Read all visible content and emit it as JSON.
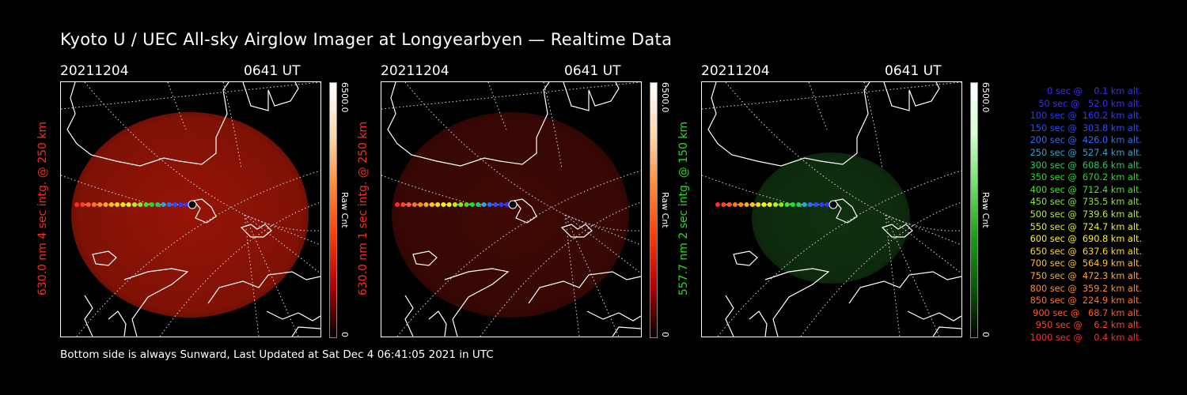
{
  "title": "Kyoto U / UEC All-sky Airglow Imager at Longyearbyen — Realtime Data",
  "panels": [
    {
      "date": "20211204",
      "time": "0641 UT",
      "ylabel": "630.0 nm 4 sec intg. @ 250 km",
      "label_color": "#ff2a1a",
      "cbar_max": "6500.0",
      "cbar_min": "0",
      "cbar_unit": "Raw Cnt",
      "cbar_gradient": [
        "#ffffff",
        "#ffd9b0",
        "#ff8c3a",
        "#ff3a0a",
        "#b00000",
        "#000000"
      ],
      "blob_color": "#c01a08",
      "blob_opacity": 0.78
    },
    {
      "date": "20211204",
      "time": "0641 UT",
      "ylabel": "630.0 nm 1 sec intg. @ 250 km",
      "label_color": "#ff2a1a",
      "cbar_max": "6500.0",
      "cbar_min": "0",
      "cbar_unit": "Raw Cnt",
      "cbar_gradient": [
        "#ffffff",
        "#ffd9b0",
        "#ff8c3a",
        "#ff3a0a",
        "#b00000",
        "#000000"
      ],
      "blob_color": "#5a0c06",
      "blob_opacity": 0.7
    },
    {
      "date": "20211204",
      "time": "0641 UT",
      "ylabel": "557.7 nm 2 sec intg. @ 150 km",
      "label_color": "#22dd22",
      "cbar_max": "6500.0",
      "cbar_min": "0",
      "cbar_unit": "Raw Cnt",
      "cbar_gradient": [
        "#ffffff",
        "#d4ffd0",
        "#6fe06a",
        "#1aa01a",
        "#0a5a0a",
        "#000000"
      ],
      "blob_color": "#123a12",
      "blob_opacity": 0.85
    }
  ],
  "legend": [
    {
      "text": "   0 sec @    0.1 km alt.",
      "color": "#3a2cff"
    },
    {
      "text": "  50 sec @   52.0 km alt.",
      "color": "#3a2cff"
    },
    {
      "text": " 100 sec @  160.2 km alt.",
      "color": "#2a3cff"
    },
    {
      "text": " 150 sec @  303.8 km alt.",
      "color": "#2a4cff"
    },
    {
      "text": " 200 sec @  426.0 km alt.",
      "color": "#2a6cff"
    },
    {
      "text": " 250 sec @  527.4 km alt.",
      "color": "#28a6d8"
    },
    {
      "text": " 300 sec @  608.6 km alt.",
      "color": "#22cc66"
    },
    {
      "text": " 350 sec @  670.2 km alt.",
      "color": "#22dd22"
    },
    {
      "text": " 400 sec @  712.4 km alt.",
      "color": "#44e022"
    },
    {
      "text": " 450 sec @  735.5 km alt.",
      "color": "#88e822"
    },
    {
      "text": " 500 sec @  739.6 km alt.",
      "color": "#b8ee22"
    },
    {
      "text": " 550 sec @  724.7 km alt.",
      "color": "#e6f022"
    },
    {
      "text": " 600 sec @  690.8 km alt.",
      "color": "#fff022"
    },
    {
      "text": " 650 sec @  637.6 km alt.",
      "color": "#ffd422"
    },
    {
      "text": " 700 sec @  564.9 km alt.",
      "color": "#ffc022"
    },
    {
      "text": " 750 sec @  472.3 km alt.",
      "color": "#ffa822"
    },
    {
      "text": " 800 sec @  359.2 km alt.",
      "color": "#ff8c22"
    },
    {
      "text": " 850 sec @  224.9 km alt.",
      "color": "#ff7322"
    },
    {
      "text": " 900 sec @   68.7 km alt.",
      "color": "#ff5a22"
    },
    {
      "text": " 950 sec @    6.2 km alt.",
      "color": "#ff4222"
    },
    {
      "text": "1000 sec @    0.4 km alt.",
      "color": "#ff2a22"
    }
  ],
  "footer": "Bottom side is always Sunward, Last Updated at Sat Dec  4 06:41:05 2021 in UTC"
}
